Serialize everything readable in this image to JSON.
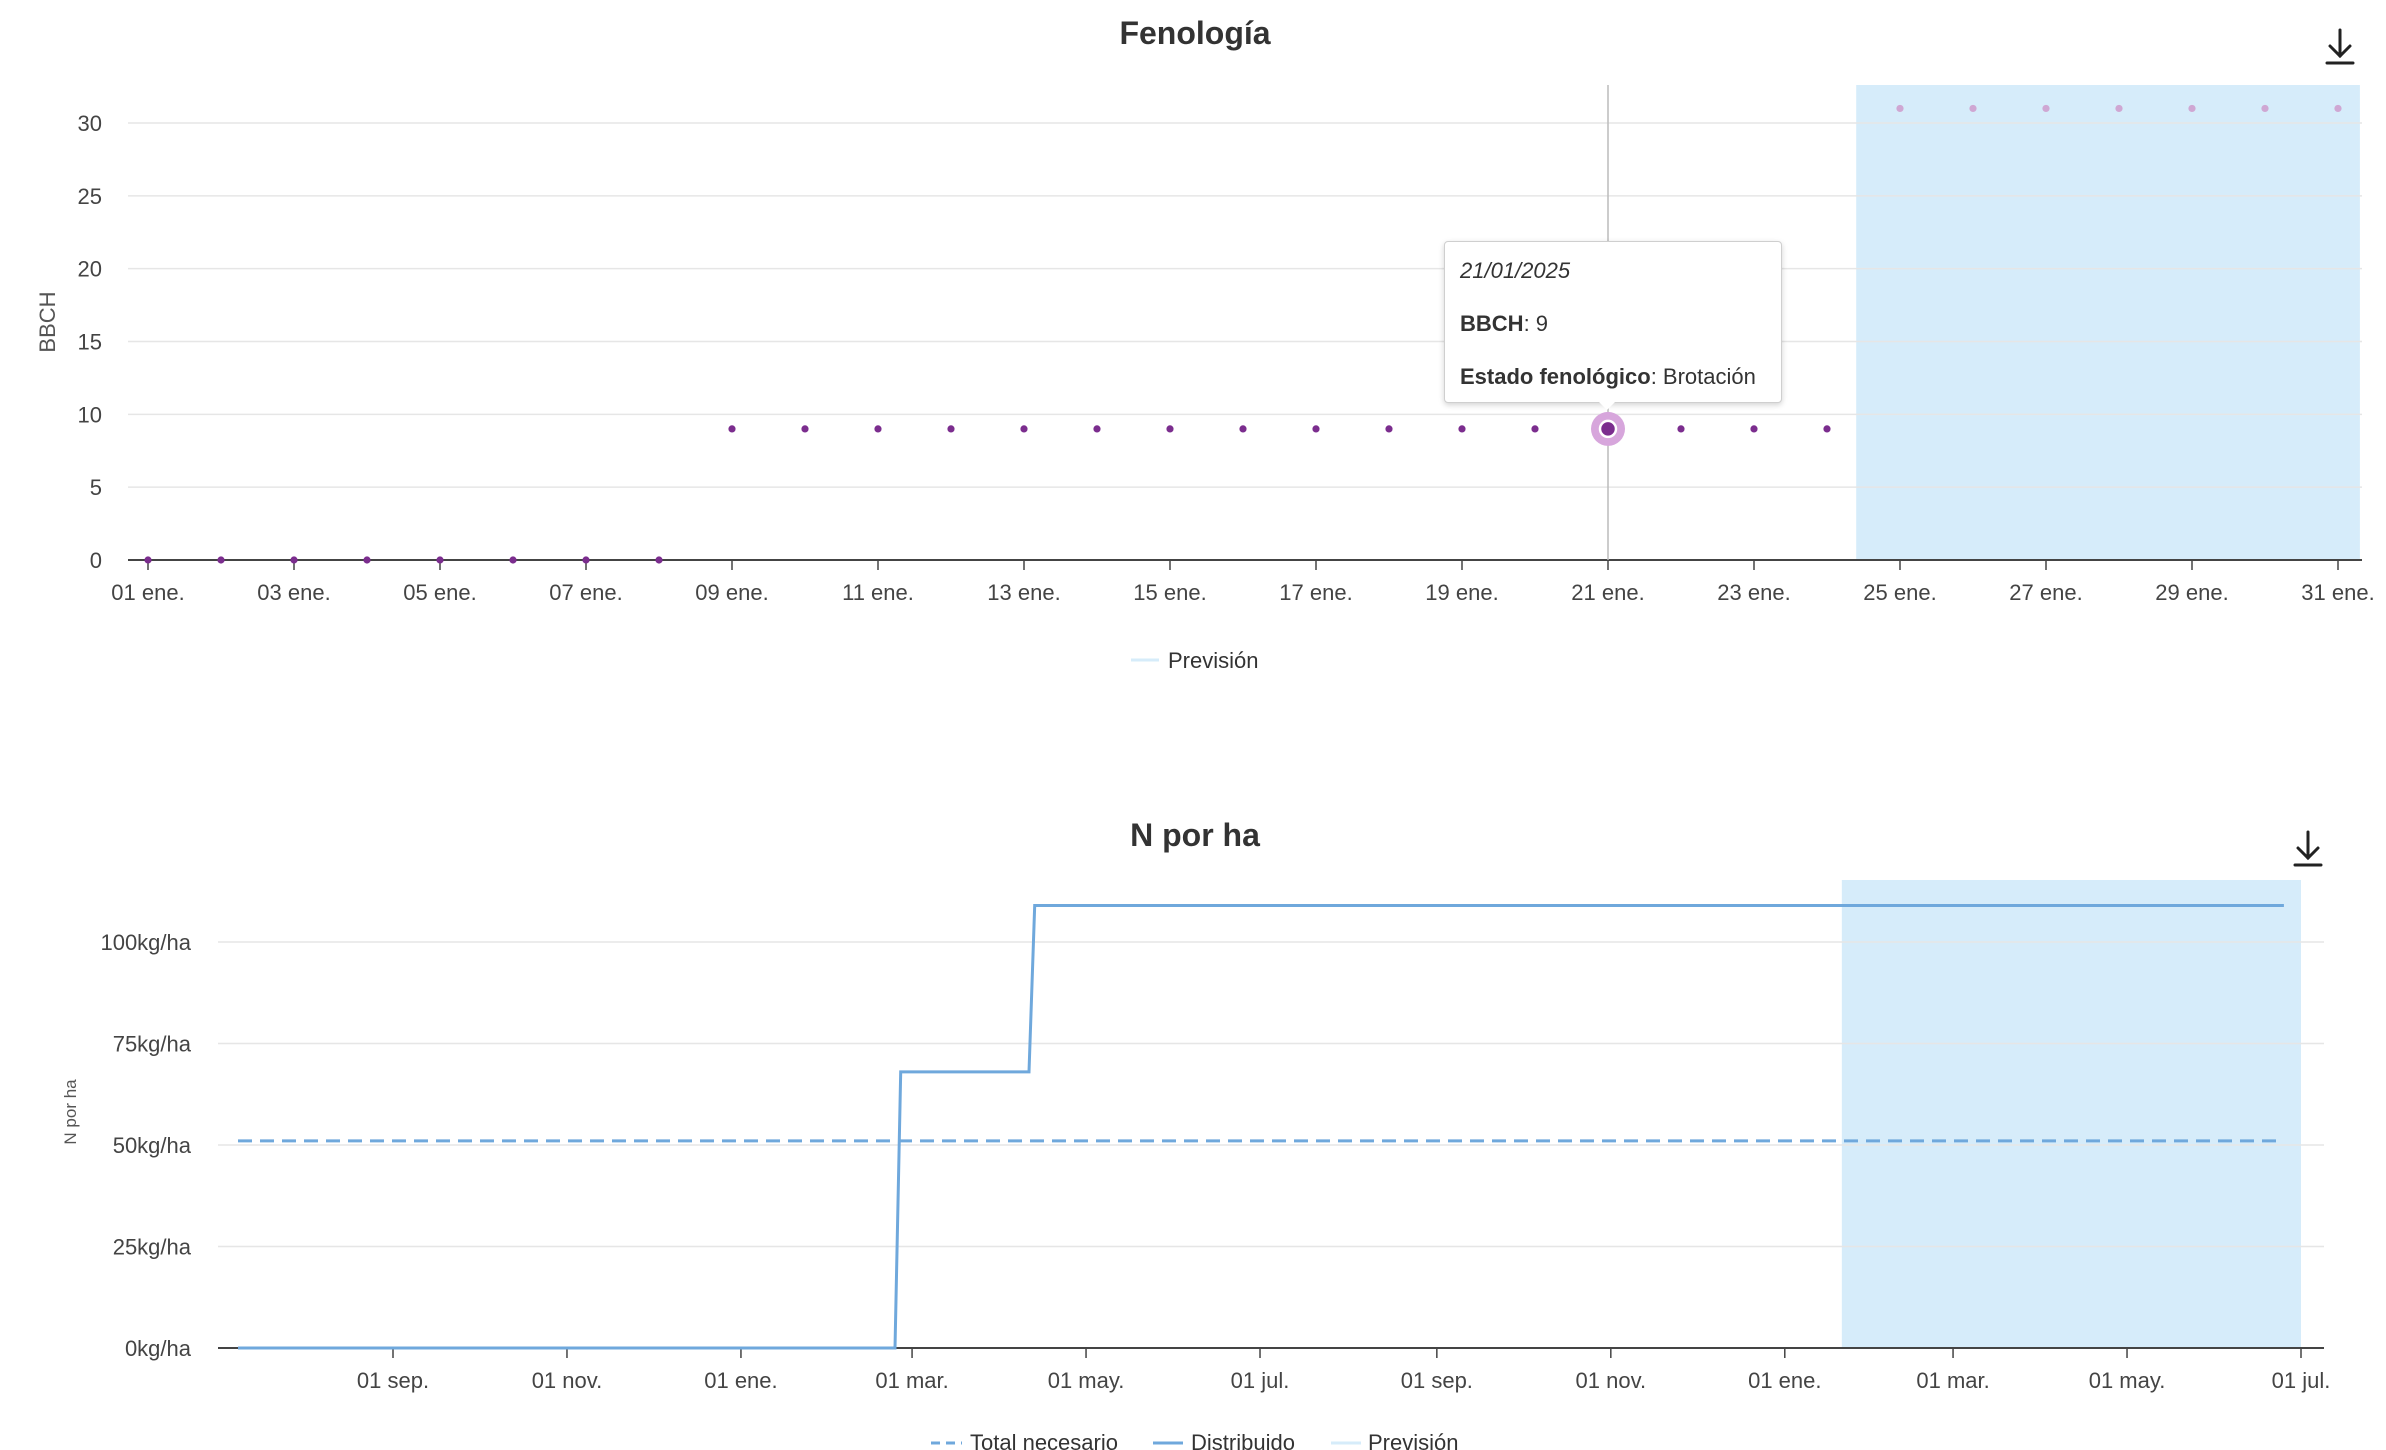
{
  "charts": [
    {
      "title": "Fenología",
      "download_icon": "download-arrow-icon",
      "y_axis_label": "BBCH",
      "y_ticks": [
        "0",
        "5",
        "10",
        "15",
        "20",
        "25",
        "30"
      ],
      "x_ticks": [
        "01 ene.",
        "03 ene.",
        "05 ene.",
        "07 ene.",
        "09 ene.",
        "11 ene.",
        "13 ene.",
        "15 ene.",
        "17 ene.",
        "19 ene.",
        "21 ene.",
        "23 ene.",
        "25 ene.",
        "27 ene.",
        "29 ene.",
        "31 ene."
      ],
      "legend": [
        {
          "label": "Previsión",
          "color": "#d6ecfa"
        }
      ],
      "tooltip": {
        "date": "21/01/2025",
        "bbch_label": "BBCH",
        "bbch_value": "9",
        "state_label": "Estado fenológico",
        "state_value": "Brotación"
      }
    },
    {
      "title": "N por ha",
      "download_icon": "download-arrow-icon",
      "y_axis_label": "N por ha",
      "y_ticks": [
        "0kg/ha",
        "25kg/ha",
        "50kg/ha",
        "75kg/ha",
        "100kg/ha"
      ],
      "x_ticks": [
        "01 sep.",
        "01 nov.",
        "01 ene.",
        "01 mar.",
        "01 may.",
        "01 jul.",
        "01 sep.",
        "01 nov.",
        "01 ene.",
        "01 mar.",
        "01 may.",
        "01 jul."
      ],
      "legend": [
        {
          "label": "Total necesario",
          "color": "#6fa8dc",
          "style": "dashed"
        },
        {
          "label": "Distribuido",
          "color": "#6fa8dc",
          "style": "solid"
        },
        {
          "label": "Previsión",
          "color": "#d6ecfa",
          "style": "solid"
        }
      ]
    }
  ],
  "chart_data": [
    {
      "type": "scatter",
      "title": "Fenología",
      "ylabel": "BBCH",
      "ylim": [
        0,
        30
      ],
      "x_unit": "day of January 2025",
      "xlim": [
        1,
        31
      ],
      "series": [
        {
          "name": null,
          "color": "#7b2d8e",
          "x": [
            1,
            2,
            3,
            4,
            5,
            6,
            7,
            8,
            9,
            10,
            11,
            12,
            13,
            14,
            15,
            16,
            17,
            18,
            19,
            20,
            21,
            22,
            23,
            24
          ],
          "y": [
            0,
            0,
            0,
            0,
            0,
            0,
            0,
            0,
            9,
            9,
            9,
            9,
            9,
            9,
            9,
            9,
            9,
            9,
            9,
            9,
            9,
            9,
            9,
            9
          ]
        },
        {
          "name": "Previsión",
          "color": "#cfa7d3",
          "x": [
            25,
            26,
            27,
            28,
            29,
            30,
            31
          ],
          "y": [
            31,
            31,
            31,
            31,
            31,
            31,
            31
          ]
        }
      ],
      "forecast_band": [
        24.4,
        31.3
      ],
      "highlight": {
        "x": 21,
        "y": 9
      },
      "grid": true,
      "legend": "bottom-center"
    },
    {
      "type": "line",
      "title": "N por ha",
      "ylabel": "N por ha",
      "ylim": [
        0,
        110
      ],
      "series": [
        {
          "name": "Total necesario",
          "style": "dashed",
          "color": "#6fa8dc",
          "points": [
            [
              "2023-07-01",
              51
            ],
            [
              "2025-06-25",
              51
            ]
          ]
        },
        {
          "name": "Distribuido",
          "style": "solid",
          "color": "#6fa8dc",
          "points": [
            [
              "2023-07-01",
              0
            ],
            [
              "2024-02-24",
              0
            ],
            [
              "2024-02-26",
              68
            ],
            [
              "2024-04-11",
              68
            ],
            [
              "2024-04-13",
              109
            ],
            [
              "2025-06-25",
              109
            ]
          ]
        }
      ],
      "forecast_band": [
        "2025-01-21",
        "2025-07-01"
      ],
      "grid": true,
      "legend": "bottom-center"
    }
  ]
}
